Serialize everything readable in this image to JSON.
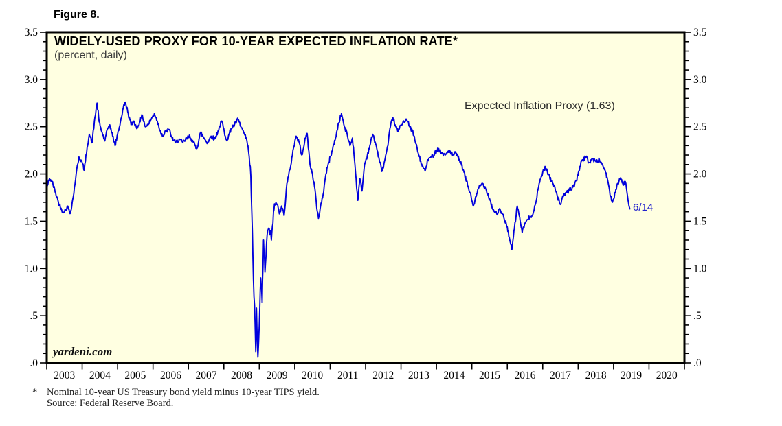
{
  "page": {
    "figure_label": "Figure 8.",
    "footnote_star": "*",
    "footnote_line1": "Nominal 10-year US Treasury bond yield minus 10-year TIPS yield.",
    "footnote_line2": "Source: Federal Reserve Board."
  },
  "chart_data": {
    "type": "area",
    "title": "WIDELY-USED PROXY FOR 10-YEAR EXPECTED INFLATION RATE*",
    "subtitle": "(percent, daily)",
    "legend": "Expected Inflation Proxy (1.63)",
    "annotation": "6/14",
    "watermark": "yardeni.com",
    "x_range": [
      2003,
      2021
    ],
    "ylim": [
      0,
      3.5
    ],
    "y_minor_step": 0.1,
    "y_major_step": 0.5,
    "y_tick_labels": [
      "3.5",
      "3.0",
      "2.5",
      "2.0",
      "1.5",
      "1.0",
      ".5",
      ".0"
    ],
    "y_tick_values": [
      3.5,
      3.0,
      2.5,
      2.0,
      1.5,
      1.0,
      0.5,
      0.0
    ],
    "x_year_labels": [
      "2003",
      "2004",
      "2005",
      "2006",
      "2007",
      "2008",
      "2009",
      "2010",
      "2011",
      "2012",
      "2013",
      "2014",
      "2015",
      "2016",
      "2017",
      "2018",
      "2019",
      "2020"
    ],
    "grid": "faint white vertical year lines inside filled area",
    "legend_position": "top-right inside plot",
    "colors": {
      "plot_bg": "#FFFFE1",
      "area_fill": "#EDEDED",
      "line": "#0000DC",
      "border": "#000000",
      "annotation": "#2222CC"
    },
    "series": [
      {
        "name": "Expected Inflation Proxy",
        "last_value": 1.63,
        "last_date_label": "6/14",
        "points": [
          [
            2003.0,
            1.85
          ],
          [
            2003.08,
            1.95
          ],
          [
            2003.15,
            1.92
          ],
          [
            2003.25,
            1.8
          ],
          [
            2003.33,
            1.7
          ],
          [
            2003.42,
            1.62
          ],
          [
            2003.5,
            1.6
          ],
          [
            2003.58,
            1.66
          ],
          [
            2003.66,
            1.58
          ],
          [
            2003.75,
            1.76
          ],
          [
            2003.83,
            2.0
          ],
          [
            2003.91,
            2.18
          ],
          [
            2004.0,
            2.12
          ],
          [
            2004.06,
            2.04
          ],
          [
            2004.14,
            2.28
          ],
          [
            2004.2,
            2.42
          ],
          [
            2004.28,
            2.33
          ],
          [
            2004.36,
            2.6
          ],
          [
            2004.42,
            2.75
          ],
          [
            2004.48,
            2.55
          ],
          [
            2004.55,
            2.45
          ],
          [
            2004.64,
            2.35
          ],
          [
            2004.72,
            2.48
          ],
          [
            2004.78,
            2.52
          ],
          [
            2004.86,
            2.4
          ],
          [
            2004.93,
            2.3
          ],
          [
            2005.0,
            2.42
          ],
          [
            2005.08,
            2.55
          ],
          [
            2005.16,
            2.7
          ],
          [
            2005.22,
            2.76
          ],
          [
            2005.3,
            2.64
          ],
          [
            2005.38,
            2.52
          ],
          [
            2005.46,
            2.56
          ],
          [
            2005.54,
            2.48
          ],
          [
            2005.62,
            2.55
          ],
          [
            2005.7,
            2.62
          ],
          [
            2005.78,
            2.5
          ],
          [
            2005.86,
            2.52
          ],
          [
            2005.95,
            2.58
          ],
          [
            2006.04,
            2.64
          ],
          [
            2006.12,
            2.56
          ],
          [
            2006.2,
            2.46
          ],
          [
            2006.28,
            2.4
          ],
          [
            2006.36,
            2.45
          ],
          [
            2006.45,
            2.47
          ],
          [
            2006.54,
            2.38
          ],
          [
            2006.64,
            2.33
          ],
          [
            2006.74,
            2.37
          ],
          [
            2006.84,
            2.33
          ],
          [
            2006.94,
            2.37
          ],
          [
            2007.04,
            2.4
          ],
          [
            2007.14,
            2.33
          ],
          [
            2007.24,
            2.27
          ],
          [
            2007.34,
            2.44
          ],
          [
            2007.44,
            2.38
          ],
          [
            2007.54,
            2.33
          ],
          [
            2007.64,
            2.4
          ],
          [
            2007.74,
            2.37
          ],
          [
            2007.84,
            2.46
          ],
          [
            2007.94,
            2.56
          ],
          [
            2008.04,
            2.4
          ],
          [
            2008.1,
            2.36
          ],
          [
            2008.2,
            2.48
          ],
          [
            2008.3,
            2.52
          ],
          [
            2008.4,
            2.58
          ],
          [
            2008.48,
            2.5
          ],
          [
            2008.56,
            2.44
          ],
          [
            2008.62,
            2.38
          ],
          [
            2008.68,
            2.3
          ],
          [
            2008.73,
            2.1
          ],
          [
            2008.76,
            1.98
          ],
          [
            2008.79,
            1.58
          ],
          [
            2008.82,
            1.1
          ],
          [
            2008.85,
            0.7
          ],
          [
            2008.88,
            0.44
          ],
          [
            2008.9,
            0.12
          ],
          [
            2008.92,
            0.58
          ],
          [
            2008.94,
            0.28
          ],
          [
            2008.96,
            0.06
          ],
          [
            2009.0,
            0.4
          ],
          [
            2009.04,
            0.9
          ],
          [
            2009.08,
            0.64
          ],
          [
            2009.12,
            1.3
          ],
          [
            2009.16,
            0.96
          ],
          [
            2009.22,
            1.35
          ],
          [
            2009.28,
            1.42
          ],
          [
            2009.34,
            1.3
          ],
          [
            2009.4,
            1.6
          ],
          [
            2009.47,
            1.7
          ],
          [
            2009.55,
            1.62
          ],
          [
            2009.63,
            1.66
          ],
          [
            2009.7,
            1.56
          ],
          [
            2009.78,
            1.9
          ],
          [
            2009.87,
            2.05
          ],
          [
            2009.95,
            2.25
          ],
          [
            2010.04,
            2.4
          ],
          [
            2010.12,
            2.34
          ],
          [
            2010.2,
            2.2
          ],
          [
            2010.28,
            2.34
          ],
          [
            2010.35,
            2.43
          ],
          [
            2010.43,
            2.1
          ],
          [
            2010.5,
            2.0
          ],
          [
            2010.57,
            1.84
          ],
          [
            2010.62,
            1.64
          ],
          [
            2010.67,
            1.53
          ],
          [
            2010.73,
            1.66
          ],
          [
            2010.8,
            1.78
          ],
          [
            2010.88,
            2.0
          ],
          [
            2010.96,
            2.12
          ],
          [
            2011.05,
            2.24
          ],
          [
            2011.14,
            2.36
          ],
          [
            2011.24,
            2.54
          ],
          [
            2011.32,
            2.64
          ],
          [
            2011.4,
            2.5
          ],
          [
            2011.48,
            2.42
          ],
          [
            2011.56,
            2.3
          ],
          [
            2011.63,
            2.38
          ],
          [
            2011.7,
            2.1
          ],
          [
            2011.78,
            1.72
          ],
          [
            2011.84,
            1.95
          ],
          [
            2011.9,
            1.82
          ],
          [
            2011.97,
            2.1
          ],
          [
            2012.05,
            2.2
          ],
          [
            2012.12,
            2.3
          ],
          [
            2012.2,
            2.42
          ],
          [
            2012.3,
            2.3
          ],
          [
            2012.4,
            2.12
          ],
          [
            2012.47,
            2.03
          ],
          [
            2012.55,
            2.16
          ],
          [
            2012.63,
            2.3
          ],
          [
            2012.7,
            2.5
          ],
          [
            2012.77,
            2.6
          ],
          [
            2012.85,
            2.5
          ],
          [
            2012.92,
            2.45
          ],
          [
            2013.0,
            2.52
          ],
          [
            2013.08,
            2.56
          ],
          [
            2013.16,
            2.58
          ],
          [
            2013.24,
            2.5
          ],
          [
            2013.32,
            2.46
          ],
          [
            2013.42,
            2.32
          ],
          [
            2013.5,
            2.2
          ],
          [
            2013.6,
            2.08
          ],
          [
            2013.68,
            2.03
          ],
          [
            2013.76,
            2.15
          ],
          [
            2013.86,
            2.18
          ],
          [
            2013.95,
            2.22
          ],
          [
            2014.05,
            2.27
          ],
          [
            2014.15,
            2.22
          ],
          [
            2014.25,
            2.2
          ],
          [
            2014.35,
            2.25
          ],
          [
            2014.45,
            2.2
          ],
          [
            2014.55,
            2.22
          ],
          [
            2014.65,
            2.15
          ],
          [
            2014.75,
            2.05
          ],
          [
            2014.85,
            1.92
          ],
          [
            2014.95,
            1.8
          ],
          [
            2015.04,
            1.66
          ],
          [
            2015.12,
            1.76
          ],
          [
            2015.2,
            1.86
          ],
          [
            2015.3,
            1.9
          ],
          [
            2015.4,
            1.84
          ],
          [
            2015.5,
            1.74
          ],
          [
            2015.6,
            1.62
          ],
          [
            2015.7,
            1.58
          ],
          [
            2015.8,
            1.62
          ],
          [
            2015.9,
            1.54
          ],
          [
            2016.0,
            1.44
          ],
          [
            2016.07,
            1.3
          ],
          [
            2016.13,
            1.2
          ],
          [
            2016.2,
            1.42
          ],
          [
            2016.28,
            1.66
          ],
          [
            2016.35,
            1.54
          ],
          [
            2016.42,
            1.38
          ],
          [
            2016.5,
            1.48
          ],
          [
            2016.58,
            1.52
          ],
          [
            2016.66,
            1.55
          ],
          [
            2016.74,
            1.6
          ],
          [
            2016.82,
            1.72
          ],
          [
            2016.9,
            1.9
          ],
          [
            2017.0,
            2.02
          ],
          [
            2017.08,
            2.07
          ],
          [
            2017.16,
            2.0
          ],
          [
            2017.25,
            1.92
          ],
          [
            2017.33,
            1.88
          ],
          [
            2017.42,
            1.76
          ],
          [
            2017.49,
            1.68
          ],
          [
            2017.58,
            1.76
          ],
          [
            2017.66,
            1.8
          ],
          [
            2017.75,
            1.83
          ],
          [
            2017.85,
            1.86
          ],
          [
            2017.95,
            1.93
          ],
          [
            2018.05,
            2.08
          ],
          [
            2018.12,
            2.15
          ],
          [
            2018.22,
            2.18
          ],
          [
            2018.3,
            2.12
          ],
          [
            2018.4,
            2.16
          ],
          [
            2018.5,
            2.13
          ],
          [
            2018.6,
            2.15
          ],
          [
            2018.68,
            2.1
          ],
          [
            2018.76,
            2.04
          ],
          [
            2018.83,
            1.94
          ],
          [
            2018.9,
            1.78
          ],
          [
            2018.97,
            1.7
          ],
          [
            2019.05,
            1.8
          ],
          [
            2019.12,
            1.9
          ],
          [
            2019.2,
            1.96
          ],
          [
            2019.27,
            1.88
          ],
          [
            2019.33,
            1.92
          ],
          [
            2019.38,
            1.8
          ],
          [
            2019.42,
            1.7
          ],
          [
            2019.46,
            1.63
          ]
        ]
      }
    ]
  }
}
